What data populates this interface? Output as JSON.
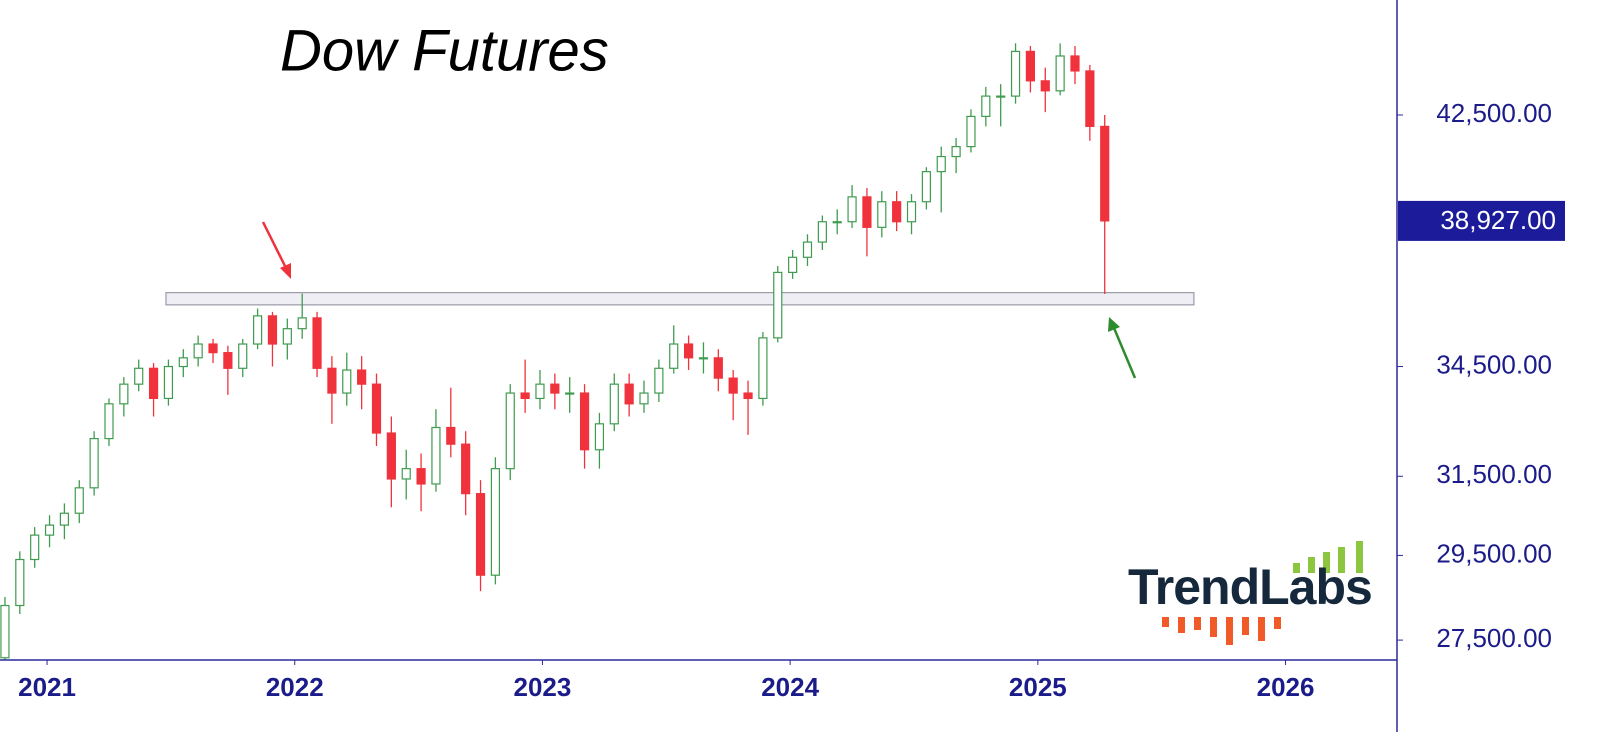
{
  "chart_data": {
    "type": "candlestick",
    "title": "Dow Futures",
    "watermark": "TrendLabs",
    "x": [
      2020.83,
      2020.89,
      2020.95,
      2021.01,
      2021.07,
      2021.13,
      2021.19,
      2021.25,
      2021.31,
      2021.37,
      2021.43,
      2021.49,
      2021.55,
      2021.61,
      2021.67,
      2021.73,
      2021.79,
      2021.85,
      2021.91,
      2021.97,
      2022.03,
      2022.09,
      2022.15,
      2022.21,
      2022.27,
      2022.33,
      2022.39,
      2022.45,
      2022.51,
      2022.57,
      2022.63,
      2022.69,
      2022.75,
      2022.81,
      2022.87,
      2022.93,
      2022.99,
      2023.05,
      2023.11,
      2023.17,
      2023.23,
      2023.29,
      2023.35,
      2023.41,
      2023.47,
      2023.53,
      2023.59,
      2023.65,
      2023.71,
      2023.77,
      2023.83,
      2023.89,
      2023.95,
      2024.01,
      2024.07,
      2024.13,
      2024.19,
      2024.25,
      2024.31,
      2024.37,
      2024.43,
      2024.49,
      2024.55,
      2024.61,
      2024.67,
      2024.73,
      2024.79,
      2024.85,
      2024.91,
      2024.97,
      2025.03,
      2025.09,
      2025.15,
      2025.21,
      2025.27
    ],
    "open": [
      27100,
      28300,
      29400,
      30000,
      30250,
      30550,
      31200,
      32500,
      33450,
      34000,
      34450,
      33600,
      34500,
      34750,
      35150,
      34900,
      34450,
      35150,
      35980,
      35150,
      35600,
      35920,
      34450,
      33750,
      34400,
      34000,
      32650,
      31430,
      31700,
      31300,
      32800,
      32350,
      31050,
      29020,
      31700,
      33750,
      33600,
      34000,
      33750,
      33750,
      32200,
      32900,
      34000,
      33450,
      33750,
      34450,
      35150,
      34750,
      34750,
      34170,
      33750,
      33600,
      35330,
      37300,
      37770,
      38250,
      38900,
      38900,
      39710,
      38720,
      39550,
      38900,
      39550,
      40550,
      41060,
      41400,
      42450,
      43170,
      43170,
      44800,
      43720,
      43360,
      44630,
      44080,
      42100
    ],
    "high": [
      28500,
      29600,
      30200,
      30500,
      30800,
      31400,
      32700,
      33600,
      34200,
      34700,
      34600,
      34700,
      35000,
      35400,
      35300,
      35100,
      35300,
      36200,
      36100,
      35900,
      36650,
      36100,
      34800,
      34900,
      34800,
      34300,
      33100,
      32200,
      32100,
      33300,
      33900,
      32700,
      31400,
      32000,
      34000,
      34700,
      34400,
      34300,
      34200,
      34000,
      33200,
      34300,
      34300,
      34100,
      34700,
      35700,
      35400,
      35200,
      35000,
      34400,
      34100,
      35500,
      37500,
      38000,
      38500,
      39100,
      39300,
      40100,
      40000,
      39900,
      39900,
      39800,
      40700,
      41400,
      41700,
      42700,
      43500,
      43600,
      45100,
      45000,
      44200,
      45100,
      45000,
      44300,
      42500
    ],
    "low": [
      27050,
      28100,
      29200,
      29700,
      29900,
      30300,
      31000,
      32300,
      33100,
      33800,
      33100,
      33400,
      34200,
      34500,
      34600,
      33700,
      34200,
      35000,
      34500,
      34700,
      35300,
      34200,
      32900,
      33400,
      33300,
      32300,
      30700,
      30900,
      30600,
      31100,
      32000,
      30500,
      28640,
      28800,
      31400,
      33200,
      33300,
      33300,
      33200,
      31700,
      31700,
      32700,
      33100,
      33200,
      33500,
      34300,
      34400,
      34300,
      33800,
      33000,
      32600,
      33400,
      35200,
      37100,
      37500,
      38000,
      38500,
      38700,
      37800,
      38400,
      38600,
      38500,
      39300,
      39200,
      40500,
      41200,
      42100,
      42100,
      42900,
      43300,
      42600,
      43200,
      43600,
      41600,
      36640
    ],
    "close": [
      28300,
      29400,
      30000,
      30250,
      30550,
      31200,
      32500,
      33450,
      34000,
      34450,
      33600,
      34500,
      34750,
      35150,
      34900,
      34450,
      35150,
      35980,
      35150,
      35600,
      35920,
      34450,
      33750,
      34400,
      34000,
      32650,
      31430,
      31700,
      31300,
      32800,
      32350,
      31050,
      29020,
      31700,
      33750,
      33600,
      34000,
      33750,
      33750,
      32200,
      32900,
      34000,
      33450,
      33750,
      34450,
      35150,
      34750,
      34750,
      34170,
      33750,
      33600,
      35330,
      37300,
      37770,
      38250,
      38900,
      38900,
      39710,
      38720,
      39550,
      38900,
      39550,
      40550,
      41060,
      41400,
      42450,
      43170,
      43170,
      44800,
      43720,
      43360,
      44630,
      44080,
      42100,
      38927
    ],
    "up_color": "#3f9b4f",
    "down_color": "#f0323c",
    "xlim": [
      2020.81,
      2026.45
    ],
    "xticks": [
      2021,
      2022,
      2023,
      2024,
      2025,
      2026
    ],
    "ylim": [
      27050,
      46750
    ],
    "y_scale": "log",
    "yticks": [
      {
        "value": 27500,
        "label": "27,500.00"
      },
      {
        "value": 29500,
        "label": "29,500.00"
      },
      {
        "value": 31500,
        "label": "31,500.00"
      },
      {
        "value": 34500,
        "label": "34,500.00"
      },
      {
        "value": 42500,
        "label": "42,500.00"
      }
    ],
    "last_value": {
      "value": 38927,
      "label": "38,927.00"
    },
    "reference_band": {
      "ylim": [
        36310,
        36680
      ],
      "xlim": [
        2021.48,
        2025.63
      ]
    }
  }
}
